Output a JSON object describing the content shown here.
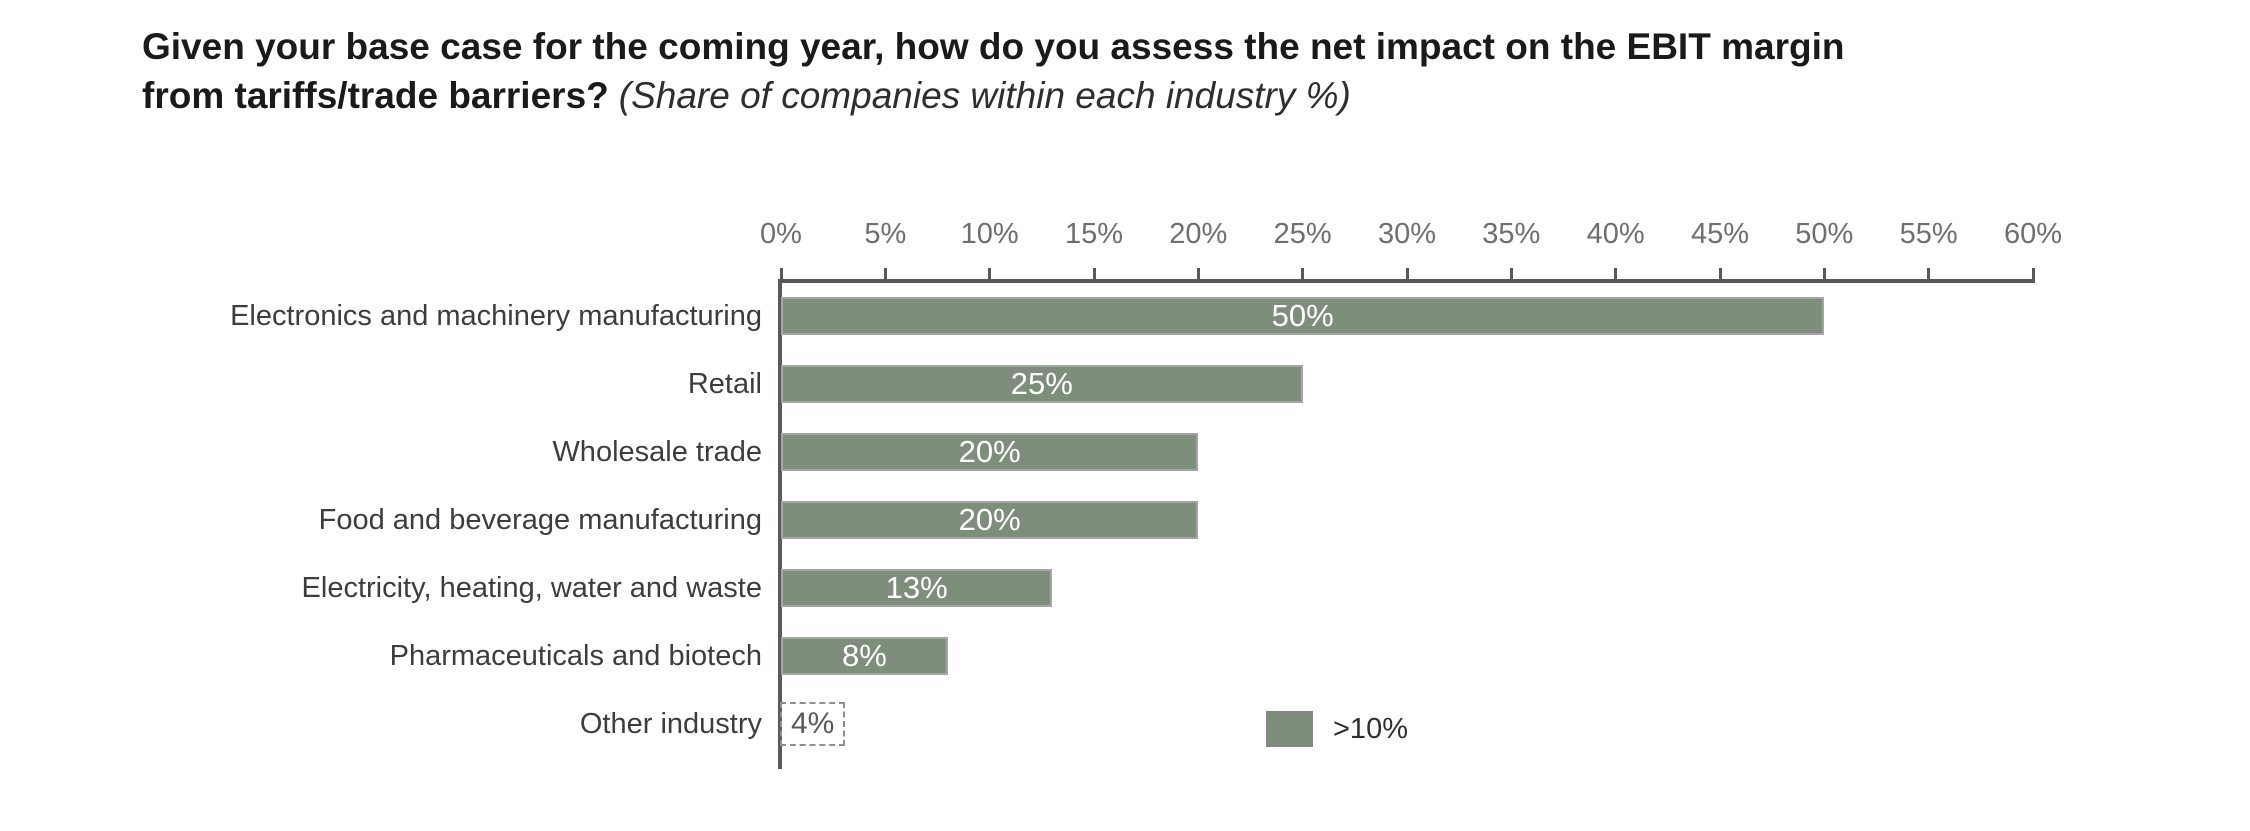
{
  "header": {
    "title_line1": "Given your base case for the coming year, how do you assess the net impact on the EBIT margin",
    "title_line2_bold": "from tariffs/trade barriers?",
    "subtitle_italic": "(Share of companies within each industry %)"
  },
  "chart_data": {
    "type": "bar",
    "orientation": "horizontal",
    "title": "Given your base case for the coming year, how do you assess the net impact on the EBIT margin from tariffs/trade barriers?",
    "subtitle": "(Share of companies within each industry %)",
    "unit": "%",
    "xlim": [
      0,
      60
    ],
    "x_tick_step": 5,
    "x_tick_labels": [
      "0%",
      "5%",
      "10%",
      "15%",
      "20%",
      "25%",
      "30%",
      "35%",
      "40%",
      "45%",
      "50%",
      "55%",
      "60%"
    ],
    "grid": "off",
    "categories": [
      "Electronics and machinery manufacturing",
      "Retail",
      "Wholesale trade",
      "Food and beverage manufacturing",
      "Electricity, heating, water and waste",
      "Pharmaceuticals and biotech",
      "Other industry"
    ],
    "values": [
      50,
      25,
      20,
      20,
      13,
      8,
      4
    ],
    "value_labels": [
      "50%",
      "25%",
      "20%",
      "20%",
      "13%",
      "8%",
      "4%"
    ],
    "bar_visible": [
      true,
      true,
      true,
      true,
      true,
      true,
      false
    ],
    "label_style": [
      "inside",
      "inside",
      "inside",
      "inside",
      "inside",
      "inside",
      "outside-selected"
    ],
    "legend": {
      "label": ">10%",
      "position": "below-plot"
    },
    "colors": {
      "bar": "#7d8e7a",
      "bar_border": "#a5a5a5",
      "axis": "#595959",
      "tick_label": "#6f6f6f",
      "category_label": "#3d3d3d",
      "value_label": "#ffffff",
      "outside_label": "#595959",
      "title": "#1a1a1a"
    }
  }
}
